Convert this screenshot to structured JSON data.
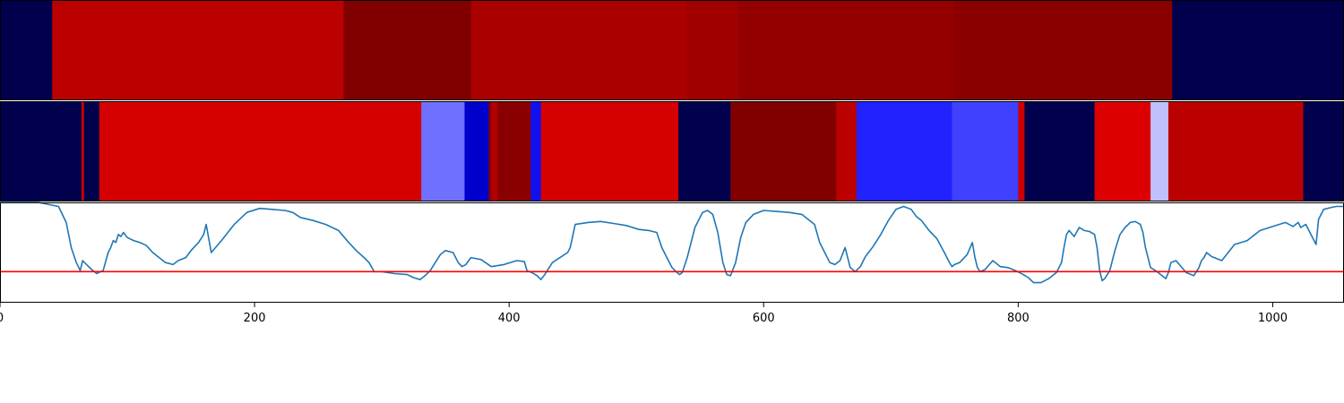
{
  "chart_data": {
    "type": "heatmap",
    "xlim": [
      0,
      1056
    ],
    "x_ticks": [
      0,
      200,
      400,
      600,
      800,
      1000
    ],
    "x_tick_labels": [
      "0",
      "200",
      "400",
      "600",
      "800",
      "1000"
    ],
    "colormap": "seismic",
    "panels": [
      {
        "type": "heatmap",
        "segments": [
          {
            "start": 0,
            "end": 41,
            "color": "#00004d"
          },
          {
            "start": 41,
            "end": 270,
            "color": "#bb0000"
          },
          {
            "start": 270,
            "end": 370,
            "color": "#800000"
          },
          {
            "start": 370,
            "end": 540,
            "color": "#aa0000"
          },
          {
            "start": 540,
            "end": 580,
            "color": "#a00000"
          },
          {
            "start": 580,
            "end": 750,
            "color": "#940000"
          },
          {
            "start": 750,
            "end": 921,
            "color": "#8a0000"
          },
          {
            "start": 921,
            "end": 1056,
            "color": "#00004d"
          }
        ]
      },
      {
        "type": "heatmap",
        "segments": [
          {
            "start": 0,
            "end": 64,
            "color": "#00004d"
          },
          {
            "start": 64,
            "end": 66,
            "color": "#cc0000"
          },
          {
            "start": 66,
            "end": 78,
            "color": "#00004d"
          },
          {
            "start": 78,
            "end": 331,
            "color": "#d50000"
          },
          {
            "start": 331,
            "end": 365,
            "color": "#7070ff"
          },
          {
            "start": 365,
            "end": 384,
            "color": "#0000cc"
          },
          {
            "start": 384,
            "end": 386,
            "color": "#8a0000"
          },
          {
            "start": 386,
            "end": 391,
            "color": "#b00000"
          },
          {
            "start": 391,
            "end": 417,
            "color": "#8a0000"
          },
          {
            "start": 417,
            "end": 425,
            "color": "#1010ee"
          },
          {
            "start": 425,
            "end": 533,
            "color": "#d50000"
          },
          {
            "start": 533,
            "end": 574,
            "color": "#00004d"
          },
          {
            "start": 574,
            "end": 657,
            "color": "#800000"
          },
          {
            "start": 657,
            "end": 673,
            "color": "#bb0000"
          },
          {
            "start": 673,
            "end": 748,
            "color": "#2222ff"
          },
          {
            "start": 748,
            "end": 800,
            "color": "#4040ff"
          },
          {
            "start": 800,
            "end": 805,
            "color": "#cc0000"
          },
          {
            "start": 805,
            "end": 860,
            "color": "#00004d"
          },
          {
            "start": 860,
            "end": 904,
            "color": "#dd0000"
          },
          {
            "start": 904,
            "end": 918,
            "color": "#c0c0ff"
          },
          {
            "start": 918,
            "end": 1024,
            "color": "#bb0000"
          },
          {
            "start": 1024,
            "end": 1056,
            "color": "#00004d"
          }
        ]
      },
      {
        "type": "line",
        "ylim": [
          0,
          1
        ],
        "threshold": 0.31,
        "threshold_color": "#ff0000",
        "line_color": "#1f77b4",
        "x": [
          0,
          30,
          46,
          52,
          56,
          60,
          63,
          65,
          68,
          72,
          76,
          79,
          81,
          85,
          87,
          89,
          91,
          93,
          95,
          97,
          100,
          105,
          110,
          115,
          120,
          125,
          130,
          136,
          140,
          146,
          150,
          156,
          160,
          162,
          166,
          174,
          184,
          194,
          204,
          214,
          224,
          230,
          236,
          246,
          256,
          266,
          274,
          280,
          286,
          290,
          294,
          300,
          310,
          320,
          325,
          330,
          334,
          338,
          342,
          346,
          350,
          356,
          360,
          363,
          366,
          370,
          378,
          386,
          396,
          406,
          412,
          414,
          418,
          422,
          425,
          428,
          434,
          440,
          446,
          448,
          452,
          462,
          472,
          482,
          492,
          502,
          510,
          516,
          520,
          524,
          528,
          532,
          534,
          536,
          540,
          546,
          552,
          556,
          560,
          564,
          568,
          571,
          574,
          578,
          582,
          586,
          592,
          600,
          610,
          620,
          630,
          640,
          644,
          648,
          652,
          656,
          660,
          664,
          668,
          672,
          676,
          680,
          686,
          692,
          698,
          704,
          710,
          716,
          720,
          724,
          730,
          736,
          742,
          746,
          748,
          750,
          754,
          760,
          764,
          766,
          768,
          770,
          774,
          780,
          786,
          792,
          798,
          804,
          808,
          812,
          818,
          824,
          830,
          834,
          836,
          838,
          840,
          844,
          848,
          852,
          856,
          860,
          862,
          864,
          866,
          868,
          872,
          876,
          880,
          884,
          888,
          892,
          896,
          898,
          900,
          904,
          908,
          912,
          916,
          918,
          920,
          924,
          932,
          938,
          942,
          944,
          946,
          948,
          952,
          960,
          970,
          980,
          990,
          1000,
          1010,
          1016,
          1020,
          1022,
          1026,
          1030,
          1034,
          1036,
          1040,
          1046,
          1050,
          1056
        ],
        "y": [
          1.0,
          1.0,
          0.96,
          0.8,
          0.55,
          0.4,
          0.32,
          0.42,
          0.38,
          0.33,
          0.29,
          0.31,
          0.32,
          0.5,
          0.55,
          0.62,
          0.6,
          0.68,
          0.66,
          0.7,
          0.65,
          0.62,
          0.6,
          0.57,
          0.5,
          0.45,
          0.4,
          0.38,
          0.42,
          0.45,
          0.52,
          0.6,
          0.68,
          0.78,
          0.5,
          0.62,
          0.78,
          0.9,
          0.94,
          0.93,
          0.92,
          0.9,
          0.85,
          0.82,
          0.78,
          0.72,
          0.6,
          0.52,
          0.45,
          0.4,
          0.31,
          0.31,
          0.29,
          0.28,
          0.25,
          0.23,
          0.27,
          0.32,
          0.4,
          0.48,
          0.52,
          0.5,
          0.4,
          0.36,
          0.38,
          0.45,
          0.43,
          0.36,
          0.38,
          0.42,
          0.41,
          0.32,
          0.3,
          0.27,
          0.23,
          0.28,
          0.4,
          0.45,
          0.5,
          0.55,
          0.78,
          0.8,
          0.81,
          0.79,
          0.77,
          0.73,
          0.72,
          0.7,
          0.55,
          0.45,
          0.35,
          0.3,
          0.28,
          0.3,
          0.45,
          0.75,
          0.9,
          0.92,
          0.88,
          0.7,
          0.4,
          0.28,
          0.27,
          0.4,
          0.65,
          0.8,
          0.88,
          0.92,
          0.91,
          0.9,
          0.88,
          0.78,
          0.6,
          0.5,
          0.4,
          0.38,
          0.42,
          0.55,
          0.35,
          0.31,
          0.36,
          0.46,
          0.56,
          0.68,
          0.82,
          0.93,
          0.96,
          0.93,
          0.86,
          0.82,
          0.72,
          0.64,
          0.5,
          0.4,
          0.36,
          0.38,
          0.4,
          0.48,
          0.6,
          0.45,
          0.35,
          0.31,
          0.33,
          0.42,
          0.36,
          0.35,
          0.32,
          0.28,
          0.25,
          0.2,
          0.2,
          0.24,
          0.3,
          0.4,
          0.55,
          0.68,
          0.72,
          0.66,
          0.75,
          0.72,
          0.71,
          0.68,
          0.55,
          0.32,
          0.22,
          0.24,
          0.32,
          0.52,
          0.68,
          0.75,
          0.8,
          0.81,
          0.78,
          0.7,
          0.55,
          0.35,
          0.32,
          0.28,
          0.24,
          0.3,
          0.4,
          0.42,
          0.3,
          0.27,
          0.35,
          0.42,
          0.45,
          0.5,
          0.46,
          0.42,
          0.58,
          0.62,
          0.72,
          0.76,
          0.8,
          0.76,
          0.8,
          0.75,
          0.78,
          0.68,
          0.58,
          0.83,
          0.93,
          0.95,
          0.96,
          0.96
        ]
      }
    ]
  }
}
